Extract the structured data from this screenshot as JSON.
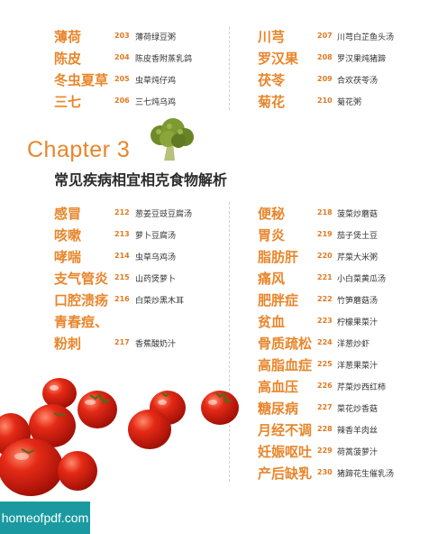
{
  "top_left": [
    {
      "name": "薄荷",
      "page": "203",
      "dish": "薄荷绿豆粥"
    },
    {
      "name": "陈皮",
      "page": "204",
      "dish": "陈皮香附蒸乳鸽"
    },
    {
      "name": "冬虫夏草",
      "page": "205",
      "dish": "虫草炖仔鸡"
    },
    {
      "name": "三七",
      "page": "206",
      "dish": "三七炖乌鸡"
    }
  ],
  "top_right": [
    {
      "name": "川芎",
      "page": "207",
      "dish": "川芎白芷鱼头汤"
    },
    {
      "name": "罗汉果",
      "page": "208",
      "dish": "罗汉果炖猪蹄"
    },
    {
      "name": "茯苓",
      "page": "209",
      "dish": "合欢茯苓汤"
    },
    {
      "name": "菊花",
      "page": "210",
      "dish": "菊花粥"
    }
  ],
  "chapter": {
    "label": "Chapter 3",
    "title": "常见疾病相宜相克食物解析"
  },
  "bottom_left": [
    {
      "name": "感冒",
      "page": "212",
      "dish": "葱姜豆豉豆腐汤"
    },
    {
      "name": "咳嗽",
      "page": "213",
      "dish": "萝卜豆腐汤"
    },
    {
      "name": "哮喘",
      "page": "214",
      "dish": "虫草乌鸡汤"
    },
    {
      "name": "支气管炎",
      "page": "215",
      "dish": "山药煲萝卜"
    },
    {
      "name": "口腔溃疡",
      "page": "216",
      "dish": "白菜炒黑木耳"
    },
    {
      "name": "青春痘、",
      "page": "",
      "dish": ""
    },
    {
      "name": "粉刺",
      "page": "217",
      "dish": "香蕉酸奶汁"
    }
  ],
  "bottom_right": [
    {
      "name": "便秘",
      "page": "218",
      "dish": "菠菜炒蘑菇"
    },
    {
      "name": "胃炎",
      "page": "219",
      "dish": "茄子煲土豆"
    },
    {
      "name": "脂肪肝",
      "page": "220",
      "dish": "芹菜大米粥"
    },
    {
      "name": "痛风",
      "page": "221",
      "dish": "小白菜黄瓜汤"
    },
    {
      "name": "肥胖症",
      "page": "222",
      "dish": "竹笋蘑菇汤"
    },
    {
      "name": "贫血",
      "page": "223",
      "dish": "柠檬果菜汁"
    },
    {
      "name": "骨质疏松",
      "page": "224",
      "dish": "洋葱炒虾"
    },
    {
      "name": "高脂血症",
      "page": "225",
      "dish": "洋葱果菜汁"
    },
    {
      "name": "高血压",
      "page": "226",
      "dish": "芹菜炒西红柿"
    },
    {
      "name": "糖尿病",
      "page": "227",
      "dish": "菜花炒香菇"
    },
    {
      "name": "月经不调",
      "page": "228",
      "dish": "辣香羊肉丝"
    },
    {
      "name": "妊娠呕吐",
      "page": "229",
      "dish": "荷蒿菠萝汁"
    },
    {
      "name": "产后缺乳",
      "page": "230",
      "dish": "猪蹄花生催乳汤"
    }
  ],
  "watermark": "homeofpdf.com",
  "colors": {
    "accent": "#e8862b",
    "watermark_bg": "#1a9aa0"
  }
}
